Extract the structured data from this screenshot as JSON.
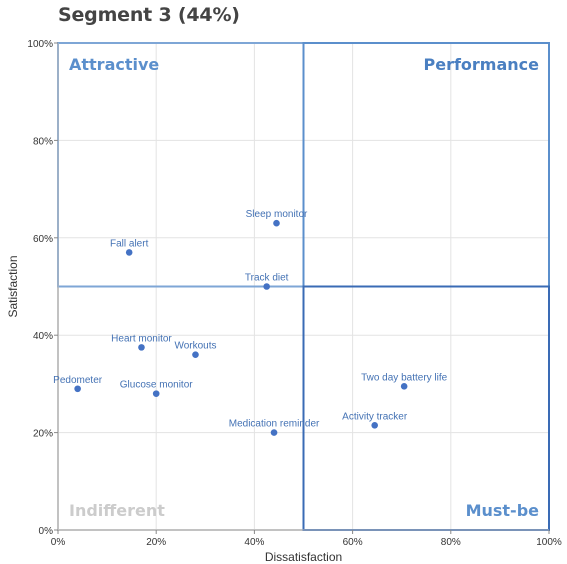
{
  "chart_data": {
    "type": "scatter",
    "title": "Segment 3 (44%)",
    "xlabel": "Dissatisfaction",
    "ylabel": "Satisfaction",
    "xlim": [
      0,
      100
    ],
    "ylim": [
      0,
      100
    ],
    "x_ticks": [
      0,
      20,
      40,
      60,
      80,
      100
    ],
    "y_ticks": [
      0,
      20,
      40,
      60,
      80,
      100
    ],
    "x_tick_labels": [
      "0%",
      "20%",
      "40%",
      "60%",
      "80%",
      "100%"
    ],
    "y_tick_labels": [
      "0%",
      "20%",
      "40%",
      "60%",
      "80%",
      "100%"
    ],
    "grid": true,
    "point_color": "#4472c4",
    "points": [
      {
        "label": "Sleep monitor",
        "x": 44.5,
        "y": 63
      },
      {
        "label": "Fall alert",
        "x": 14.5,
        "y": 57
      },
      {
        "label": "Track diet",
        "x": 42.5,
        "y": 50
      },
      {
        "label": "Heart monitor",
        "x": 17,
        "y": 37.5
      },
      {
        "label": "Workouts",
        "x": 28,
        "y": 36
      },
      {
        "label": "Pedometer",
        "x": 4,
        "y": 29
      },
      {
        "label": "Glucose monitor",
        "x": 20,
        "y": 28
      },
      {
        "label": "Medication reminder",
        "x": 44,
        "y": 20
      },
      {
        "label": "Two day battery life",
        "x": 70.5,
        "y": 29.5
      },
      {
        "label": "Activity tracker",
        "x": 64.5,
        "y": 21.5
      }
    ],
    "quadrants": [
      {
        "label": "Attractive",
        "x_range": [
          0,
          50
        ],
        "y_range": [
          50,
          100
        ],
        "color": "#7ea6d6",
        "label_color": "#5b8fcc",
        "label_pos": "top-left"
      },
      {
        "label": "Performance",
        "x_range": [
          50,
          100
        ],
        "y_range": [
          50,
          100
        ],
        "color": "#5b8fcc",
        "label_color": "#4a7fc1",
        "label_pos": "top-right"
      },
      {
        "label": "Indifferent",
        "x_range": [
          0,
          50
        ],
        "y_range": [
          0,
          50
        ],
        "color": "#c8c8c8",
        "label_color": "#cccccc",
        "label_pos": "bottom-left"
      },
      {
        "label": "Must-be",
        "x_range": [
          50,
          100
        ],
        "y_range": [
          0,
          50
        ],
        "color": "#3a6bb5",
        "label_color": "#5b8fcc",
        "label_pos": "bottom-right"
      }
    ]
  }
}
